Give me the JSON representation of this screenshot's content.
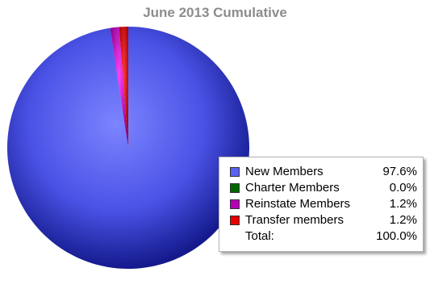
{
  "chart_data": {
    "type": "pie",
    "title": "June 2013 Cumulative",
    "slices": [
      {
        "name": "New Members",
        "value": 97.6,
        "label": "97.6%",
        "color": "#4a55e8"
      },
      {
        "name": "Charter Members",
        "value": 0.0,
        "label": "0.0%",
        "color": "#006600"
      },
      {
        "name": "Reinstate Members",
        "value": 1.2,
        "label": "1.2%",
        "color": "#b400b4"
      },
      {
        "name": "Transfer members",
        "value": 1.2,
        "label": "1.2%",
        "color": "#e60000"
      }
    ],
    "total": {
      "name": "Total:",
      "label": "100.0%"
    },
    "legend_position": "bottom-right"
  }
}
